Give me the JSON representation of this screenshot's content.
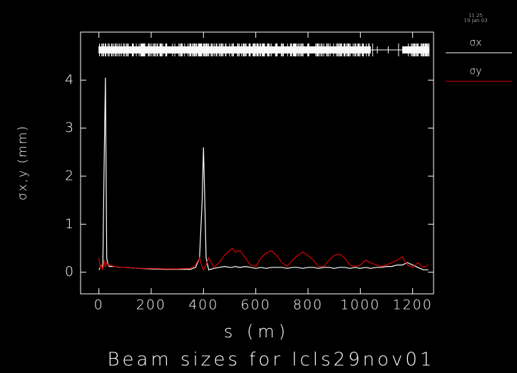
{
  "chart_data": {
    "type": "line",
    "title": "Beam sizes for lcls29nov01",
    "x_label": "s (m)",
    "y_label": "σx,y (mm)",
    "timestamp": [
      "11.25",
      "19 Jan 03"
    ],
    "x": [
      0,
      5,
      10,
      15,
      20,
      25,
      30,
      35,
      40,
      60,
      80,
      100,
      150,
      200,
      250,
      300,
      350,
      370,
      385,
      395,
      400,
      405,
      410,
      420,
      440,
      460,
      480,
      500,
      510,
      520,
      540,
      560,
      580,
      600,
      620,
      640,
      660,
      680,
      700,
      720,
      740,
      760,
      780,
      800,
      820,
      840,
      860,
      880,
      900,
      920,
      940,
      960,
      980,
      1000,
      1020,
      1040,
      1060,
      1080,
      1100,
      1120,
      1140,
      1160,
      1180,
      1200,
      1220,
      1240,
      1260
    ],
    "series": [
      {
        "name": "σx",
        "color": "#ffffff",
        "values": [
          0.05,
          0.1,
          0.15,
          0.1,
          2.2,
          4.05,
          0.3,
          0.15,
          0.12,
          0.12,
          0.1,
          0.1,
          0.08,
          0.07,
          0.06,
          0.06,
          0.06,
          0.1,
          0.3,
          1.5,
          2.6,
          1.5,
          0.3,
          0.05,
          0.08,
          0.1,
          0.12,
          0.1,
          0.1,
          0.12,
          0.1,
          0.12,
          0.1,
          0.08,
          0.1,
          0.08,
          0.1,
          0.1,
          0.1,
          0.08,
          0.1,
          0.1,
          0.08,
          0.1,
          0.1,
          0.08,
          0.1,
          0.1,
          0.08,
          0.1,
          0.1,
          0.08,
          0.1,
          0.08,
          0.1,
          0.08,
          0.1,
          0.1,
          0.12,
          0.12,
          0.15,
          0.15,
          0.2,
          0.15,
          0.1,
          0.05,
          0.05
        ]
      },
      {
        "name": "σy",
        "color": "#e00000",
        "values": [
          0.3,
          0.1,
          0.15,
          0.05,
          0.25,
          0.1,
          0.2,
          0.15,
          0.15,
          0.12,
          0.1,
          0.1,
          0.08,
          0.08,
          0.07,
          0.07,
          0.08,
          0.15,
          0.3,
          0.1,
          0.05,
          0.1,
          0.15,
          0.3,
          0.1,
          0.2,
          0.35,
          0.45,
          0.5,
          0.42,
          0.45,
          0.3,
          0.15,
          0.12,
          0.3,
          0.4,
          0.45,
          0.35,
          0.2,
          0.12,
          0.25,
          0.35,
          0.42,
          0.35,
          0.25,
          0.12,
          0.12,
          0.25,
          0.35,
          0.38,
          0.3,
          0.15,
          0.12,
          0.15,
          0.25,
          0.2,
          0.15,
          0.12,
          0.15,
          0.2,
          0.25,
          0.32,
          0.15,
          0.1,
          0.2,
          0.1,
          0.15
        ]
      }
    ],
    "xlim": [
      -70,
      1280
    ],
    "ylim": [
      -0.45,
      5
    ],
    "xticks": [
      0,
      200,
      400,
      600,
      800,
      1000,
      1200
    ],
    "yticks": [
      0,
      1,
      2,
      3,
      4
    ]
  }
}
